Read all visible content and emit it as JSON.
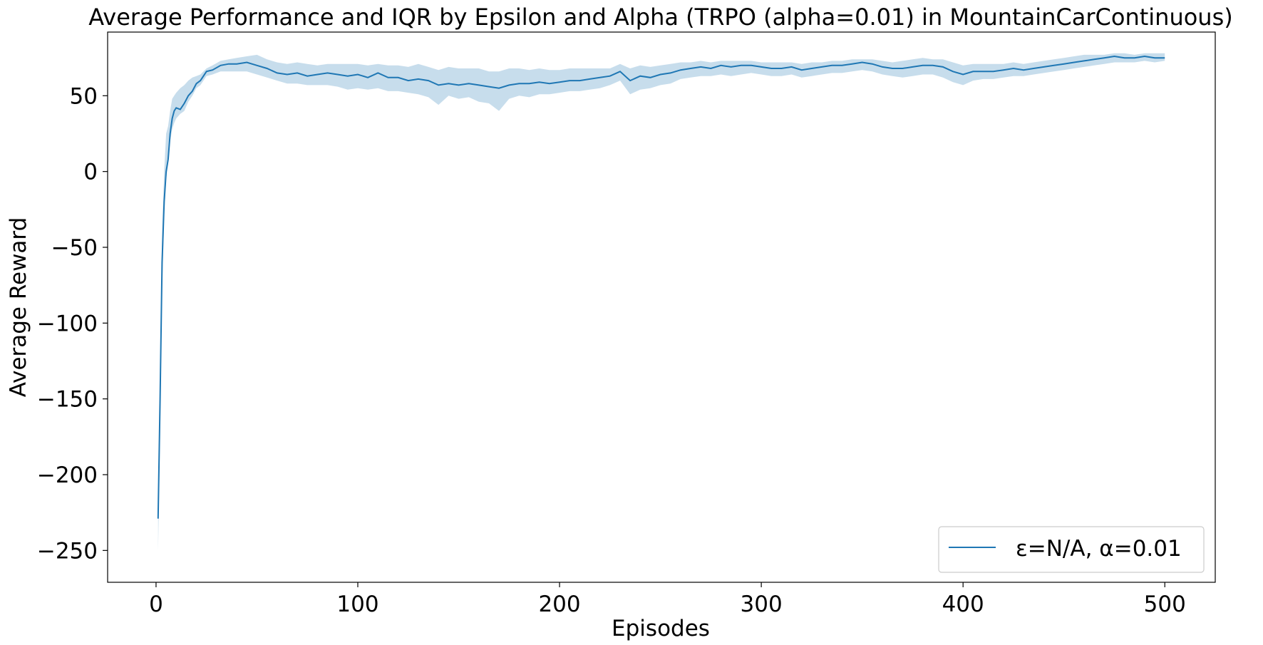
{
  "chart_data": {
    "type": "line",
    "title": "Average Performance and IQR by Epsilon and Alpha (TRPO (alpha=0.01) in MountainCarContinuous)",
    "xlabel": "Episodes",
    "ylabel": "Average Reward",
    "xlim": [
      -24,
      525
    ],
    "ylim": [
      -271,
      92
    ],
    "xticks": [
      0,
      100,
      200,
      300,
      400,
      500
    ],
    "yticks": [
      -250,
      -200,
      -150,
      -100,
      -50,
      0,
      50
    ],
    "grid": false,
    "legend_position": "lower-right",
    "colors": {
      "line": "#1f77b4",
      "band": "#1f77b4"
    },
    "series": [
      {
        "name": "ε=N/A, α=0.01",
        "x": [
          1,
          2,
          3,
          4,
          5,
          6,
          7,
          8,
          9,
          10,
          12,
          14,
          16,
          18,
          20,
          22,
          25,
          28,
          32,
          36,
          40,
          45,
          50,
          55,
          60,
          65,
          70,
          75,
          80,
          85,
          90,
          95,
          100,
          105,
          110,
          115,
          120,
          125,
          130,
          135,
          140,
          145,
          150,
          155,
          160,
          165,
          170,
          175,
          180,
          185,
          190,
          195,
          200,
          205,
          210,
          215,
          220,
          225,
          230,
          235,
          240,
          245,
          250,
          255,
          260,
          265,
          270,
          275,
          280,
          285,
          290,
          295,
          300,
          305,
          310,
          315,
          320,
          325,
          330,
          335,
          340,
          345,
          350,
          355,
          360,
          365,
          370,
          375,
          380,
          385,
          390,
          395,
          400,
          405,
          410,
          415,
          420,
          425,
          430,
          435,
          440,
          445,
          450,
          455,
          460,
          465,
          470,
          475,
          480,
          485,
          490,
          495,
          500
        ],
        "y": [
          -229,
          -150,
          -60,
          -20,
          0,
          8,
          25,
          35,
          40,
          42,
          41,
          45,
          50,
          53,
          58,
          60,
          66,
          67,
          70,
          71,
          71,
          72,
          70,
          68,
          65,
          64,
          65,
          63,
          64,
          65,
          64,
          63,
          64,
          62,
          65,
          62,
          62,
          60,
          61,
          60,
          57,
          58,
          57,
          58,
          57,
          56,
          55,
          57,
          58,
          58,
          59,
          58,
          59,
          60,
          60,
          61,
          62,
          63,
          66,
          60,
          63,
          62,
          64,
          65,
          67,
          68,
          69,
          68,
          70,
          69,
          70,
          70,
          69,
          68,
          68,
          69,
          67,
          68,
          69,
          70,
          70,
          71,
          72,
          71,
          69,
          68,
          68,
          69,
          70,
          70,
          69,
          66,
          64,
          66,
          66,
          66,
          67,
          68,
          67,
          68,
          69,
          70,
          71,
          72,
          73,
          74,
          75,
          76,
          75,
          75,
          76,
          75,
          75
        ],
        "lower": [
          -250,
          -175,
          -80,
          -30,
          -5,
          5,
          20,
          28,
          32,
          35,
          38,
          40,
          46,
          50,
          55,
          57,
          63,
          64,
          66,
          66,
          66,
          66,
          64,
          62,
          60,
          58,
          58,
          57,
          57,
          57,
          56,
          54,
          55,
          54,
          55,
          53,
          53,
          52,
          51,
          49,
          44,
          50,
          48,
          49,
          46,
          45,
          40,
          48,
          50,
          49,
          51,
          51,
          52,
          53,
          53,
          54,
          55,
          57,
          60,
          51,
          54,
          55,
          57,
          58,
          61,
          62,
          63,
          63,
          64,
          63,
          64,
          65,
          64,
          63,
          63,
          64,
          62,
          63,
          64,
          65,
          65,
          66,
          67,
          66,
          64,
          63,
          62,
          63,
          64,
          64,
          62,
          59,
          57,
          60,
          61,
          61,
          62,
          63,
          63,
          64,
          65,
          66,
          67,
          68,
          69,
          70,
          71,
          72,
          72,
          72,
          73,
          72,
          73
        ],
        "upper": [
          -220,
          -140,
          -40,
          0,
          25,
          30,
          40,
          48,
          50,
          52,
          55,
          57,
          60,
          62,
          63,
          64,
          68,
          70,
          73,
          74,
          75,
          76,
          77,
          74,
          72,
          71,
          72,
          71,
          70,
          71,
          71,
          71,
          71,
          70,
          71,
          70,
          70,
          69,
          71,
          69,
          67,
          69,
          68,
          68,
          68,
          66,
          66,
          68,
          68,
          67,
          68,
          67,
          67,
          68,
          68,
          68,
          68,
          68,
          71,
          68,
          70,
          69,
          70,
          71,
          72,
          72,
          73,
          72,
          73,
          73,
          73,
          73,
          72,
          72,
          72,
          72,
          71,
          72,
          72,
          73,
          73,
          74,
          74,
          74,
          73,
          72,
          73,
          74,
          75,
          74,
          74,
          72,
          70,
          71,
          71,
          71,
          71,
          72,
          71,
          72,
          73,
          74,
          75,
          76,
          77,
          77,
          77,
          78,
          78,
          77,
          78,
          78,
          78
        ]
      }
    ]
  }
}
